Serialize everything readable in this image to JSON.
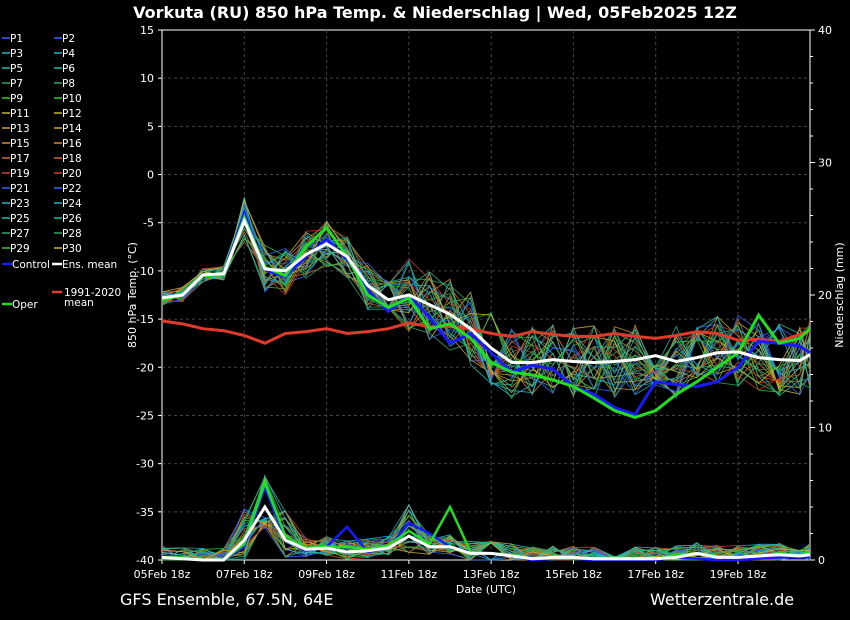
{
  "chart_data": {
    "type": "line",
    "title": "Vorkuta  (RU)  850 hPa Temp. & Niederschlag | Wed, 05Feb2025 12Z",
    "xlabel": "Date (UTC)",
    "ylabel_left": "850 hPa Temp. (°C)",
    "ylabel_right": "Niederschlag (mm)",
    "x_ticks": [
      "05Feb 18z",
      "07Feb 18z",
      "09Feb 18z",
      "11Feb 18z",
      "13Feb 18z",
      "15Feb 18z",
      "17Feb 18z",
      "19Feb 18z"
    ],
    "y_left_ticks": [
      15,
      10,
      5,
      0,
      -5,
      -10,
      -15,
      -20,
      -25,
      -30,
      -35,
      -40
    ],
    "y_right_ticks": [
      40,
      30,
      20,
      10,
      0
    ],
    "ylim_left": [
      -40,
      15
    ],
    "ylim_right": [
      0,
      40
    ],
    "x_days_from": 0,
    "x_days_to": 15.75,
    "grid": true,
    "legend_placement": "left-outside",
    "legend_members": [
      "P1",
      "P2",
      "P3",
      "P4",
      "P5",
      "P6",
      "P7",
      "P8",
      "P9",
      "P10",
      "P11",
      "P12",
      "P13",
      "P14",
      "P15",
      "P16",
      "P17",
      "P18",
      "P19",
      "P20",
      "P21",
      "P22",
      "P23",
      "P24",
      "P25",
      "P26",
      "P27",
      "P28",
      "P29",
      "P30",
      "Control",
      "Ens. mean",
      "1991-2020 mean",
      "Oper"
    ],
    "member_colors": [
      "#2e6bff",
      "#2e6bff",
      "#27b3c9",
      "#27b3c9",
      "#1fbfa5",
      "#1fbfa5",
      "#2ea860",
      "#2ea860",
      "#32c832",
      "#32c832",
      "#c8b432",
      "#c8b432",
      "#d2a02a",
      "#d2a02a",
      "#d08a2a",
      "#d08a2a",
      "#d0682a",
      "#d0682a",
      "#c8402a",
      "#c8402a",
      "#2e6bff",
      "#2e6bff",
      "#27b3c9",
      "#27b3c9",
      "#1fbfa5",
      "#1fbfa5",
      "#2ea860",
      "#2ea860",
      "#32c832",
      "#c8b432"
    ],
    "colors": {
      "control": "#1a1aff",
      "ens_mean": "#ffffff",
      "climate_mean": "#e03a2a",
      "oper": "#22dd22"
    },
    "temp_series": {
      "x_days": [
        0,
        0.5,
        1,
        1.5,
        2,
        2.5,
        3,
        3.5,
        4,
        4.5,
        5,
        5.5,
        6,
        6.5,
        7,
        7.5,
        8,
        8.5,
        9,
        9.5,
        10,
        10.5,
        11,
        11.5,
        12,
        12.5,
        13,
        13.5,
        14,
        14.5,
        15,
        15.5,
        15.75
      ],
      "ens_mean": [
        -12.8,
        -12.5,
        -10.4,
        -10.3,
        -4.8,
        -9.8,
        -10,
        -8.3,
        -7.2,
        -8.5,
        -11.5,
        -13,
        -12.5,
        -13.5,
        -14.5,
        -16,
        -18,
        -19.5,
        -19.5,
        -19.2,
        -19.4,
        -19.5,
        -19.4,
        -19.2,
        -18.8,
        -19.4,
        -19,
        -18.5,
        -18.4,
        -19,
        -19.2,
        -19.3,
        -18.7
      ],
      "control": [
        -12.8,
        -12.5,
        -10.5,
        -10.4,
        -4,
        -9.9,
        -10.6,
        -8.5,
        -6.7,
        -8.8,
        -12,
        -14.2,
        -12.5,
        -14.8,
        -17.5,
        -16.5,
        -18.5,
        -20.5,
        -19.8,
        -20.2,
        -22,
        -22.8,
        -24.2,
        -24.9,
        -21.5,
        -21.8,
        -22,
        -21.5,
        -20,
        -17.3,
        -17.5,
        -17.8,
        -18.5
      ],
      "oper": [
        -13,
        -12.5,
        -10.5,
        -10.4,
        -4.5,
        -9.6,
        -10.5,
        -7.5,
        -5.5,
        -8.5,
        -12.5,
        -13.8,
        -12.8,
        -16,
        -15.5,
        -17,
        -19.5,
        -20.5,
        -20.8,
        -21.3,
        -22,
        -23.2,
        -24.5,
        -25.2,
        -24.5,
        -22.8,
        -21.5,
        -20,
        -18.5,
        -14.6,
        -17.5,
        -17,
        -16
      ],
      "climate_mean": [
        -15.2,
        -15.5,
        -16,
        -16.2,
        -16.7,
        -17.5,
        -16.5,
        -16.3,
        -16,
        -16.5,
        -16.3,
        -16,
        -15.4,
        -15.8,
        -15.8,
        -16,
        -16.5,
        -16.8,
        -16.3,
        -16.6,
        -16.8,
        -16.8,
        -16.5,
        -16.8,
        -17,
        -16.7,
        -16.3,
        -16.5,
        -17.2,
        -17.1,
        -17.3,
        -16.6,
        -16.2
      ]
    },
    "precip_series": {
      "ens_mean": [
        0.2,
        0.1,
        0,
        0,
        1.5,
        4.0,
        1.5,
        0.8,
        0.9,
        0.6,
        0.7,
        0.9,
        1.8,
        1.0,
        1.0,
        0.5,
        0.5,
        0.3,
        0.1,
        0.2,
        0.2,
        0.1,
        0.1,
        0.1,
        0.1,
        0.2,
        0.5,
        0.2,
        0.2,
        0.3,
        0.4,
        0.3,
        0.4
      ],
      "control": [
        0.3,
        0.2,
        0,
        0,
        1.0,
        5.5,
        1.5,
        0.7,
        1.0,
        2.5,
        0.6,
        0.9,
        2.8,
        2.0,
        1.0,
        0.6,
        0.5,
        0.3,
        0.0,
        0.1,
        0.1,
        0.0,
        0.0,
        0.0,
        0.0,
        0.2,
        0.1,
        0.0,
        0.0,
        0.1,
        0.2,
        0.2,
        0.2
      ],
      "oper": [
        0.2,
        0.2,
        0,
        0,
        1.2,
        5.8,
        1.8,
        0.9,
        1.0,
        1.0,
        0.8,
        1.1,
        2.2,
        1.2,
        4.0,
        0.6,
        0.5,
        0.4,
        0.1,
        0.1,
        0.1,
        0.1,
        0.2,
        0.1,
        0.1,
        0.4,
        0.5,
        0.3,
        0.2,
        0.3,
        0.5,
        0.4,
        0.6
      ]
    }
  },
  "footer": {
    "left": "GFS Ensemble, 67.5N, 64E",
    "right": "Wetterzentrale.de"
  }
}
